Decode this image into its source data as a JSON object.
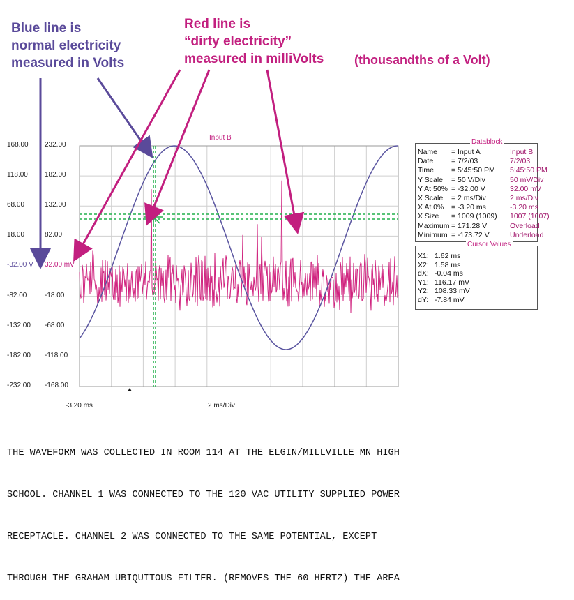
{
  "annotations": {
    "blue_text": [
      "Blue line is",
      "normal electricity",
      "measured in Volts"
    ],
    "red_text": [
      "Red line is",
      "“dirty electricity”",
      "measured in milliVolts"
    ],
    "red_extra": "(thousandths of a Volt)"
  },
  "scope": {
    "input_label": "Input B",
    "left_axis_ticks": [
      "168.00",
      "118.00",
      "68.00",
      "18.00",
      "-32.00 V",
      "-82.00",
      "-132.00",
      "-182.00",
      "-232.00"
    ],
    "right_axis_ticks": [
      "232.00",
      "182.00",
      "132.00",
      "82.00",
      "32.00 mV",
      "-18.00",
      "-68.00",
      "-118.00",
      "-168.00"
    ],
    "x_start": "-3.20 ms",
    "x_scale": "2 ms/Div",
    "colors": {
      "blue": "#5a55a0",
      "red": "#d0247f",
      "cursor": "#22b14c",
      "grid": "#cfcfcf"
    }
  },
  "datablock": {
    "title": "Datablock",
    "rows": [
      {
        "label": "Name",
        "a": "= Input A",
        "b": "Input B"
      },
      {
        "label": "Date",
        "a": "= 7/2/03",
        "b": "7/2/03"
      },
      {
        "label": "Time",
        "a": "= 5:45:50 PM",
        "b": "5:45:50 PM"
      },
      {
        "label": "Y Scale",
        "a": "= 50  V/Div",
        "b": "50  mV/Div"
      },
      {
        "label": "Y At 50%",
        "a": "= -32.00 V",
        "b": "32.00 mV"
      },
      {
        "label": "X Scale",
        "a": "= 2  ms/Div",
        "b": "2  ms/Div"
      },
      {
        "label": "X At 0%",
        "a": "= -3.20 ms",
        "b": "-3.20 ms"
      },
      {
        "label": "X Size",
        "a": "= 1009 (1009)",
        "b": "1007 (1007)"
      },
      {
        "label": "Maximum",
        "a": "= 171.28 V",
        "b": "Overload"
      },
      {
        "label": "Minimum",
        "a": "= -173.72 V",
        "b": "Underload"
      }
    ]
  },
  "cursor_values": {
    "title": "Cursor Values",
    "rows": [
      {
        "label": "X1:",
        "value": "1.62 ms"
      },
      {
        "label": "X2:",
        "value": "1.58 ms"
      },
      {
        "label": "dX:",
        "value": "-0.04 ms"
      },
      {
        "label": "Y1:",
        "value": "116.17 mV"
      },
      {
        "label": "Y2:",
        "value": "108.33 mV"
      },
      {
        "label": "dY:",
        "value": "-7.84 mV"
      }
    ]
  },
  "caption": [
    "THE WAVEFORM WAS COLLECTED IN ROOM 114 AT THE ELGIN/MILLVILLE MN HIGH",
    "SCHOOL. CHANNEL 1 WAS CONNECTED TO THE 120 VAC UTILITY SUPPLIED POWER",
    "RECEPTACLE. CHANNEL 2 WAS CONNECTED TO THE SAME POTENTIAL, EXCEPT",
    "THROUGH THE GRAHAM UBIQUITOUS FILTER. (REMOVES THE 60 HERTZ) THE AREA"
  ]
}
